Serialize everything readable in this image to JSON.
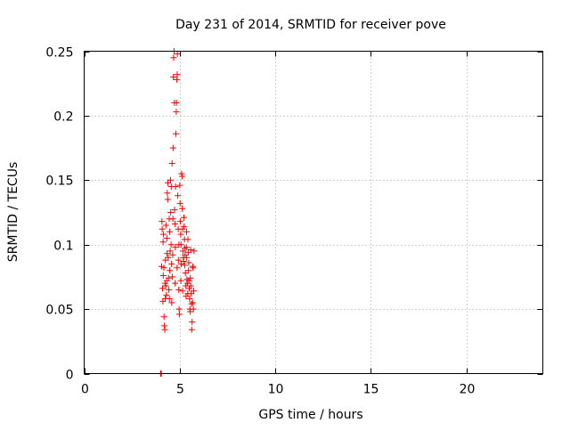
{
  "chart_data": {
    "type": "scatter",
    "title": "Day 231 of 2014, SRMTID for receiver pove",
    "xlabel": "GPS time / hours",
    "ylabel": "SRMTID / TECUs",
    "xlim": [
      0,
      24
    ],
    "ylim": [
      0,
      0.25
    ],
    "xticks": [
      0,
      5,
      10,
      15,
      20
    ],
    "yticks": [
      0,
      0.05,
      0.1,
      0.15,
      0.2,
      0.25
    ],
    "xtick_labels": [
      "0",
      "5",
      "10",
      "15",
      "20"
    ],
    "ytick_labels": [
      "0",
      "0.05",
      "0.1",
      "0.15",
      "0.2",
      "0.25"
    ],
    "grid": true,
    "marker": "plus",
    "color": "#ff0000",
    "series": [
      {
        "points": [
          [
            4.0,
            0.0
          ],
          [
            4.02,
            0.0
          ],
          [
            4.04,
            0.0
          ],
          [
            4.05,
            0.083
          ],
          [
            4.07,
            0.118
          ],
          [
            4.08,
            0.112
          ],
          [
            4.1,
            0.066
          ],
          [
            4.12,
            0.056
          ],
          [
            4.13,
            0.102
          ],
          [
            4.15,
            0.108
          ],
          [
            4.17,
            0.082
          ],
          [
            4.18,
            0.044
          ],
          [
            4.2,
            0.037
          ],
          [
            4.22,
            0.034
          ],
          [
            4.23,
            0.07
          ],
          [
            4.25,
            0.088
          ],
          [
            4.27,
            0.068
          ],
          [
            4.28,
            0.115
          ],
          [
            4.3,
            0.061
          ],
          [
            4.32,
            0.072
          ],
          [
            4.33,
            0.105
          ],
          [
            4.35,
            0.14
          ],
          [
            4.37,
            0.135
          ],
          [
            4.38,
            0.148
          ],
          [
            4.4,
            0.09
          ],
          [
            4.42,
            0.074
          ],
          [
            4.43,
            0.065
          ],
          [
            4.45,
            0.12
          ],
          [
            4.47,
            0.11
          ],
          [
            4.48,
            0.08
          ],
          [
            4.5,
            0.095
          ],
          [
            4.52,
            0.15
          ],
          [
            4.53,
            0.125
          ],
          [
            4.55,
            0.1
          ],
          [
            4.57,
            0.085
          ],
          [
            4.58,
            0.055
          ],
          [
            4.6,
            0.163
          ],
          [
            4.62,
            0.075
          ],
          [
            4.63,
            0.092
          ],
          [
            4.65,
            0.175
          ],
          [
            4.67,
            0.23
          ],
          [
            4.68,
            0.245
          ],
          [
            4.7,
            0.25
          ],
          [
            4.72,
            0.21
          ],
          [
            4.73,
            0.127
          ],
          [
            4.75,
            0.116
          ],
          [
            4.77,
            0.098
          ],
          [
            4.78,
            0.145
          ],
          [
            4.8,
            0.186
          ],
          [
            4.82,
            0.203
          ],
          [
            4.83,
            0.21
          ],
          [
            4.85,
            0.228
          ],
          [
            4.87,
            0.232
          ],
          [
            4.88,
            0.248
          ],
          [
            4.9,
            0.138
          ],
          [
            4.92,
            0.112
          ],
          [
            4.93,
            0.088
          ],
          [
            4.95,
            0.065
          ],
          [
            4.97,
            0.05
          ],
          [
            4.98,
            0.046
          ],
          [
            5.0,
            0.146
          ],
          [
            5.02,
            0.132
          ],
          [
            5.03,
            0.118
          ],
          [
            5.05,
            0.108
          ],
          [
            5.07,
            0.1
          ],
          [
            5.08,
            0.085
          ],
          [
            5.1,
            0.155
          ],
          [
            5.12,
            0.153
          ],
          [
            5.13,
            0.128
          ],
          [
            5.15,
            0.112
          ],
          [
            5.17,
            0.095
          ],
          [
            5.18,
            0.09
          ],
          [
            5.2,
            0.087
          ],
          [
            5.22,
            0.121
          ],
          [
            5.23,
            0.114
          ],
          [
            5.25,
            0.104
          ],
          [
            5.27,
            0.097
          ],
          [
            5.28,
            0.092
          ],
          [
            5.3,
            0.078
          ],
          [
            5.32,
            0.068
          ],
          [
            5.33,
            0.06
          ],
          [
            5.35,
            0.098
          ],
          [
            5.37,
            0.09
          ],
          [
            5.38,
            0.073
          ],
          [
            5.4,
            0.07
          ],
          [
            5.42,
            0.062
          ],
          [
            5.43,
            0.104
          ],
          [
            5.45,
            0.094
          ],
          [
            5.47,
            0.086
          ],
          [
            5.48,
            0.072
          ],
          [
            5.5,
            0.066
          ],
          [
            5.52,
            0.058
          ],
          [
            5.53,
            0.05
          ],
          [
            5.55,
            0.048
          ],
          [
            5.57,
            0.096
          ],
          [
            5.58,
            0.068
          ],
          [
            5.6,
            0.062
          ],
          [
            5.62,
            0.054
          ],
          [
            5.63,
            0.034
          ],
          [
            5.65,
            0.04
          ],
          [
            5.67,
            0.055
          ],
          [
            5.68,
            0.083
          ],
          [
            5.7,
            0.082
          ],
          [
            5.72,
            0.05
          ],
          [
            5.73,
            0.064
          ],
          [
            5.75,
            0.095
          ],
          [
            4.14,
            0.076
          ],
          [
            4.24,
            0.058
          ],
          [
            4.34,
            0.093
          ],
          [
            4.46,
            0.058
          ],
          [
            4.56,
            0.145
          ],
          [
            4.64,
            0.12
          ],
          [
            4.76,
            0.07
          ],
          [
            4.86,
            0.082
          ],
          [
            4.96,
            0.1
          ],
          [
            5.06,
            0.072
          ],
          [
            5.16,
            0.064
          ],
          [
            5.26,
            0.084
          ],
          [
            5.36,
            0.11
          ],
          [
            5.46,
            0.08
          ],
          [
            5.56,
            0.074
          ]
        ]
      }
    ]
  }
}
